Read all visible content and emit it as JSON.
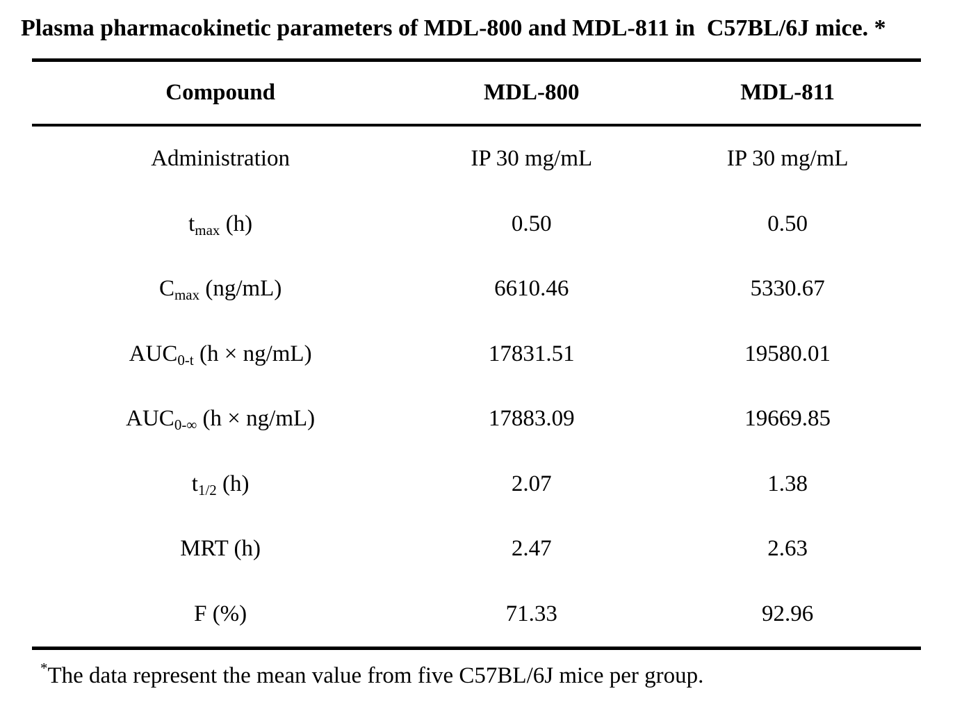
{
  "title": "Plasma pharmacokinetic parameters of MDL-800 and MDL-811 in  C57BL/6J mice. *",
  "table": {
    "columns": [
      "Compound",
      "MDL-800",
      "MDL-811"
    ],
    "rows": [
      {
        "label": {
          "pre": "Administration",
          "sub": "",
          "post": ""
        },
        "mdl800": "IP 30 mg/mL",
        "mdl811": "IP 30 mg/mL"
      },
      {
        "label": {
          "pre": "t",
          "sub": "max",
          "post": " (h)"
        },
        "mdl800": "0.50",
        "mdl811": "0.50"
      },
      {
        "label": {
          "pre": "C",
          "sub": "max",
          "post": " (ng/mL)"
        },
        "mdl800": "6610.46",
        "mdl811": "5330.67"
      },
      {
        "label": {
          "pre": "AUC",
          "sub": "0-t",
          "post": " (h × ng/mL)"
        },
        "mdl800": "17831.51",
        "mdl811": "19580.01"
      },
      {
        "label": {
          "pre": "AUC",
          "sub": "0-∞",
          "post": " (h × ng/mL)"
        },
        "mdl800": "17883.09",
        "mdl811": "19669.85"
      },
      {
        "label": {
          "pre": "t",
          "sub": "1/2",
          "post": " (h)"
        },
        "mdl800": "2.07",
        "mdl811": "1.38"
      },
      {
        "label": {
          "pre": "MRT (h)",
          "sub": "",
          "post": ""
        },
        "mdl800": "2.47",
        "mdl811": "2.63"
      },
      {
        "label": {
          "pre": "F (%)",
          "sub": "",
          "post": ""
        },
        "mdl800": "71.33",
        "mdl811": "92.96"
      }
    ]
  },
  "footnote": {
    "marker": "*",
    "text": "The data represent the mean value from five C57BL/6J mice per group."
  },
  "colors": {
    "text": "#000000",
    "background": "#ffffff",
    "rule": "#000000"
  }
}
